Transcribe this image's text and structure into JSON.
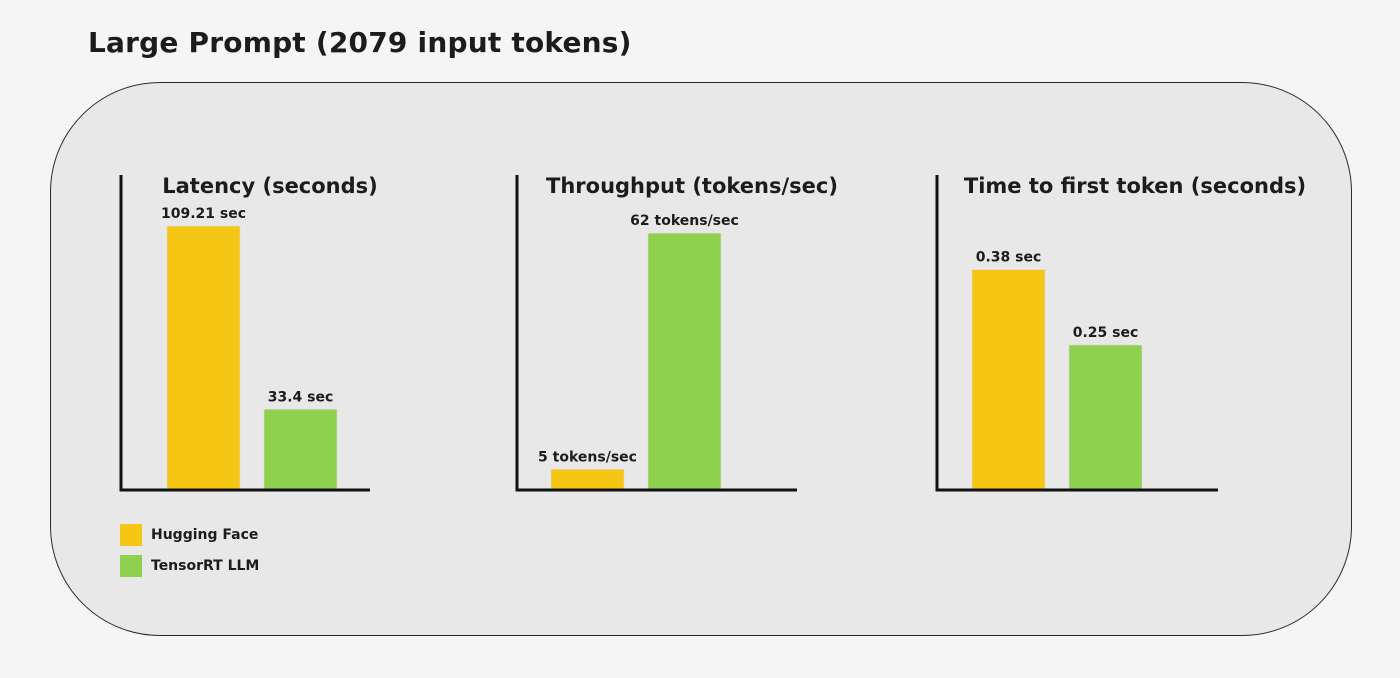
{
  "title": "Large Prompt (2079 input tokens)",
  "legend": [
    {
      "label": "Hugging Face",
      "color": "#f6c615"
    },
    {
      "label": "TensorRT LLM",
      "color": "#8fd14f"
    }
  ],
  "chart_data": [
    {
      "type": "bar",
      "title": "Latency (seconds)",
      "xlabel": "",
      "ylabel": "",
      "grid": false,
      "legend_position": "bottom-left",
      "categories": [
        "Hugging Face",
        "TensorRT LLM"
      ],
      "values": [
        109.21,
        33.4
      ],
      "data_labels": [
        "109.21 sec",
        "33.4 sec"
      ],
      "colors": [
        "#f6c615",
        "#8fd14f"
      ],
      "ylim": [
        0,
        120
      ]
    },
    {
      "type": "bar",
      "title": "Throughput (tokens/sec)",
      "xlabel": "",
      "ylabel": "",
      "grid": false,
      "categories": [
        "Hugging Face",
        "TensorRT LLM"
      ],
      "values": [
        5,
        62
      ],
      "data_labels": [
        "5 tokens/sec",
        "62 tokens/sec"
      ],
      "colors": [
        "#f6c615",
        "#8fd14f"
      ],
      "ylim": [
        0,
        70
      ]
    },
    {
      "type": "bar",
      "title": "Time to first token (seconds)",
      "xlabel": "",
      "ylabel": "",
      "grid": false,
      "categories": [
        "Hugging Face",
        "TensorRT LLM"
      ],
      "values": [
        0.38,
        0.25
      ],
      "data_labels": [
        "0.38 sec",
        "0.25 sec"
      ],
      "colors": [
        "#f6c615",
        "#8fd14f"
      ],
      "ylim": [
        0,
        0.5
      ]
    }
  ]
}
